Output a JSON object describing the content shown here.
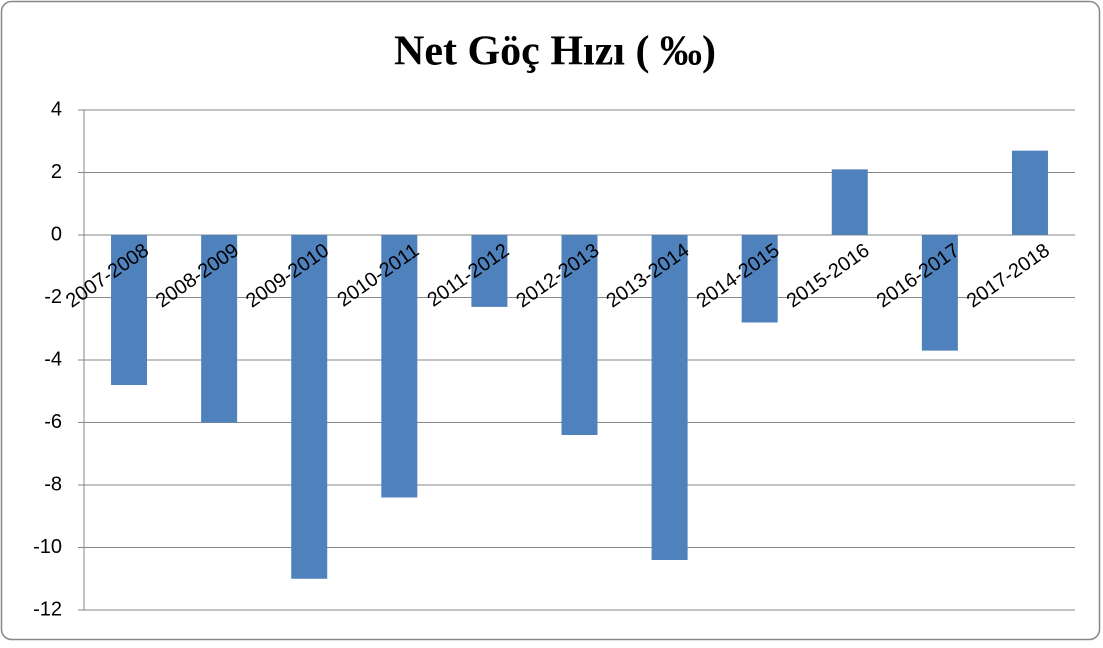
{
  "chart_data": {
    "type": "bar",
    "title": "Net Göç Hızı ( ‰)",
    "categories": [
      "2007-2008",
      "2008-2009",
      "2009-2010",
      "2010-2011",
      "2011-2012",
      "2012-2013",
      "2013-2014",
      "2014-2015",
      "2015-2016",
      "2016-2017",
      "2017-2018"
    ],
    "values": [
      -4.8,
      -6.0,
      -11.0,
      -8.4,
      -2.3,
      -6.4,
      -10.4,
      -2.8,
      2.1,
      -3.7,
      2.7
    ],
    "color": "#4f81bd",
    "ylim": [
      -12,
      4
    ],
    "yticks": [
      -12,
      -10,
      -8,
      -6,
      -4,
      -2,
      0,
      2,
      4
    ],
    "grid": true
  }
}
